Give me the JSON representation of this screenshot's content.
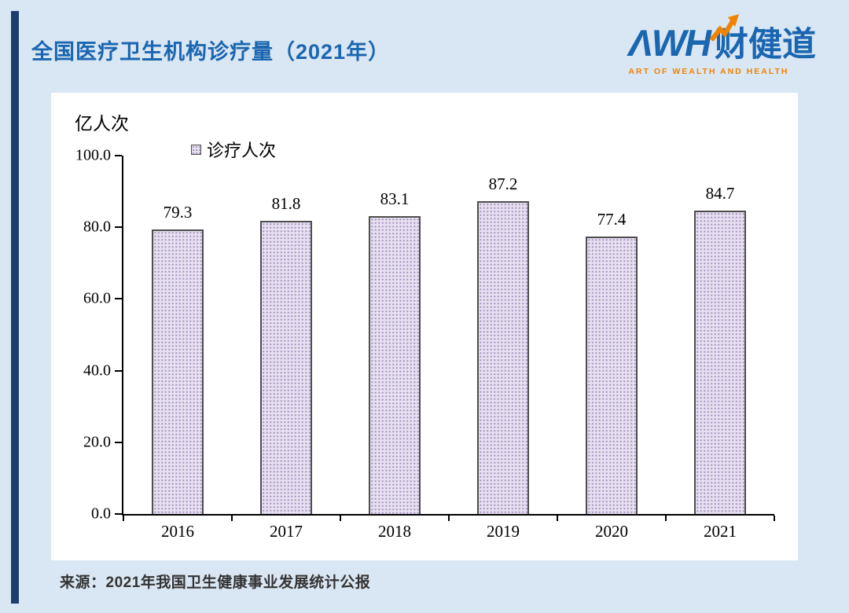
{
  "page": {
    "title": "全国医疗卫生机构诊疗量（2021年）",
    "source_note": "来源：2021年我国卫生健康事业发展统计公报"
  },
  "logo": {
    "wordmark": "ΛWH",
    "brand_cn": "财健道",
    "tagline": "ART OF WEALTH AND HEALTH"
  },
  "chart_data": {
    "type": "bar",
    "title": "全国医疗卫生机构诊疗量（2021年）",
    "unit_label": "亿人次",
    "legend_label": "诊疗人次",
    "legend_position": "top-inside",
    "categories": [
      "2016",
      "2017",
      "2018",
      "2019",
      "2020",
      "2021"
    ],
    "series": [
      {
        "name": "诊疗人次",
        "values": [
          79.3,
          81.8,
          83.1,
          87.2,
          77.4,
          84.7
        ]
      }
    ],
    "values": [
      79.3,
      81.8,
      83.1,
      87.2,
      77.4,
      84.7
    ],
    "ylim": [
      0,
      100
    ],
    "yticks": [
      0,
      20,
      40,
      60,
      80,
      100
    ],
    "ytick_labels": [
      "0.0",
      "20.0",
      "40.0",
      "60.0",
      "80.0",
      "100.0"
    ],
    "grid": false,
    "colors": {
      "bar_fill": "#e7e0f0",
      "bar_dot": "#a795c3",
      "bar_border": "#4d4d4d",
      "axis": "#000000"
    }
  },
  "theme": {
    "page_bg": "#d9e6f3",
    "strip_navy": "#1e3c6e",
    "card_bg": "#ffffff",
    "accent_blue": "#1a66b0",
    "accent_orange": "#f08300"
  }
}
